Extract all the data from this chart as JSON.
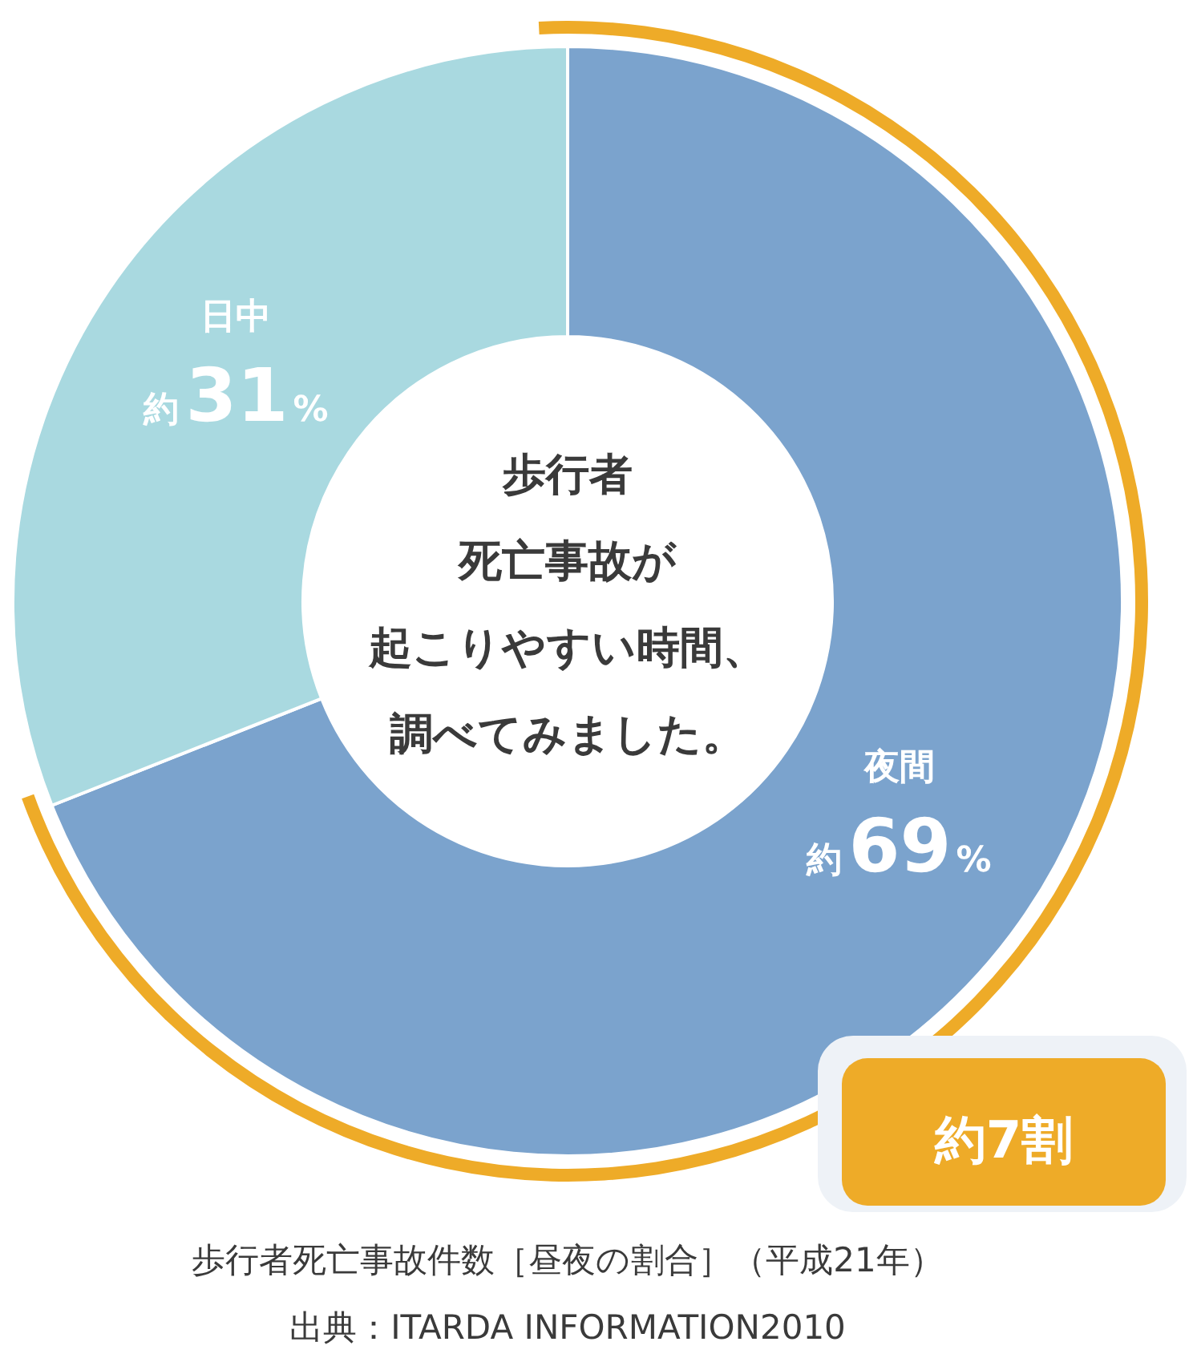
{
  "chart_data": {
    "type": "donut",
    "title": "歩行者死亡事故が起こりやすい時間、調べてみました。",
    "categories": [
      "夜間",
      "日中"
    ],
    "values": [
      69,
      31
    ],
    "colors": [
      "#7ba3cd",
      "#a9d9e0"
    ],
    "value_labels": [
      "約69%",
      "約31%"
    ],
    "annotations": [
      "約7割",
      "歩行者死亡事故件数［昼夜の割合］（平成21年）",
      "出典：ITARDA INFORMATION2010"
    ]
  }
}
